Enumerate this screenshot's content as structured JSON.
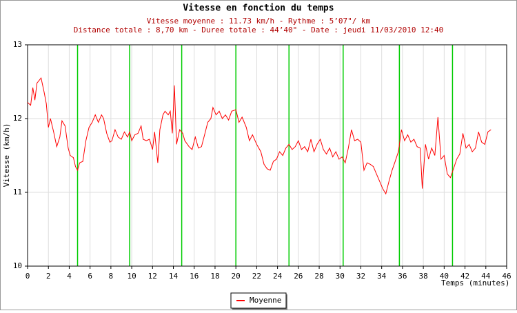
{
  "chart_data": {
    "type": "line",
    "title": "Vitesse en fonction du temps",
    "subtitle": [
      "Vitesse moyenne : 11.73 km/h - Rythme : 5’07\"/ km",
      "Distance totale : 8,70 km - Duree totale : 44’40\" - Date : jeudi 11/03/2010 12:40"
    ],
    "x_label": "Temps (minutes)",
    "y_label": "Vitesse (km/h)",
    "x": [
      0,
      0.3,
      0.5,
      0.7,
      0.9,
      1.3,
      1.6,
      1.8,
      2.0,
      2.2,
      2.5,
      2.8,
      3.1,
      3.3,
      3.6,
      3.9,
      4.1,
      4.4,
      4.6,
      4.8,
      5.0,
      5.3,
      5.6,
      5.9,
      6.2,
      6.5,
      6.8,
      7.1,
      7.3,
      7.6,
      7.9,
      8.1,
      8.4,
      8.7,
      9.0,
      9.3,
      9.6,
      9.8,
      10.0,
      10.3,
      10.6,
      10.9,
      11.1,
      11.4,
      11.7,
      12.0,
      12.2,
      12.5,
      12.7,
      13.0,
      13.2,
      13.5,
      13.7,
      13.9,
      14.1,
      14.3,
      14.6,
      14.9,
      15.1,
      15.5,
      15.8,
      16.1,
      16.4,
      16.7,
      17.0,
      17.3,
      17.6,
      17.8,
      18.1,
      18.4,
      18.7,
      19.0,
      19.3,
      19.6,
      20.0,
      20.3,
      20.6,
      21.0,
      21.3,
      21.6,
      22.0,
      22.4,
      22.7,
      23.0,
      23.3,
      23.6,
      23.9,
      24.2,
      24.5,
      24.8,
      25.1,
      25.4,
      25.7,
      26.0,
      26.3,
      26.6,
      26.9,
      27.2,
      27.5,
      27.8,
      28.1,
      28.4,
      28.7,
      29.0,
      29.3,
      29.6,
      29.9,
      30.2,
      30.5,
      30.8,
      31.1,
      31.4,
      31.7,
      32.0,
      32.3,
      32.6,
      32.9,
      33.2,
      33.5,
      33.8,
      34.1,
      34.4,
      34.7,
      35.0,
      35.3,
      35.6,
      35.9,
      36.2,
      36.5,
      36.8,
      37.1,
      37.4,
      37.7,
      37.9,
      38.2,
      38.5,
      38.8,
      39.1,
      39.4,
      39.7,
      40.0,
      40.3,
      40.6,
      40.9,
      41.2,
      41.5,
      41.8,
      42.1,
      42.4,
      42.7,
      43.0,
      43.3,
      43.6,
      43.9,
      44.2,
      44.5
    ],
    "series": [
      {
        "name": "Moyenne",
        "color": "#ff0000",
        "values": [
          12.22,
          12.18,
          12.42,
          12.25,
          12.48,
          12.55,
          12.35,
          12.2,
          11.88,
          12.0,
          11.82,
          11.62,
          11.75,
          11.97,
          11.9,
          11.6,
          11.5,
          11.47,
          11.35,
          11.3,
          11.4,
          11.42,
          11.7,
          11.88,
          11.95,
          12.05,
          11.95,
          12.05,
          12.0,
          11.8,
          11.68,
          11.7,
          11.85,
          11.75,
          11.72,
          11.82,
          11.75,
          11.82,
          11.7,
          11.78,
          11.8,
          11.9,
          11.72,
          11.7,
          11.72,
          11.58,
          11.82,
          11.4,
          11.85,
          12.05,
          12.1,
          12.05,
          12.1,
          11.8,
          12.45,
          11.65,
          11.85,
          11.8,
          11.7,
          11.62,
          11.58,
          11.75,
          11.6,
          11.62,
          11.78,
          11.95,
          12.0,
          12.15,
          12.05,
          12.1,
          12.0,
          12.05,
          11.98,
          12.1,
          12.12,
          11.95,
          12.02,
          11.88,
          11.7,
          11.78,
          11.65,
          11.55,
          11.38,
          11.32,
          11.3,
          11.42,
          11.45,
          11.55,
          11.5,
          11.6,
          11.65,
          11.58,
          11.62,
          11.7,
          11.58,
          11.62,
          11.55,
          11.72,
          11.55,
          11.65,
          11.72,
          11.58,
          11.52,
          11.6,
          11.48,
          11.55,
          11.45,
          11.48,
          11.4,
          11.6,
          11.85,
          11.7,
          11.72,
          11.68,
          11.3,
          11.4,
          11.38,
          11.35,
          11.25,
          11.15,
          11.05,
          10.98,
          11.15,
          11.3,
          11.42,
          11.55,
          11.85,
          11.7,
          11.78,
          11.68,
          11.72,
          11.62,
          11.6,
          11.05,
          11.65,
          11.45,
          11.6,
          11.5,
          12.02,
          11.45,
          11.5,
          11.25,
          11.2,
          11.32,
          11.45,
          11.52,
          11.8,
          11.6,
          11.65,
          11.55,
          11.6,
          11.82,
          11.68,
          11.65,
          11.82,
          11.85
        ]
      }
    ],
    "markers": {
      "color": "#00cc00",
      "x": [
        4.8,
        9.8,
        14.8,
        20.0,
        25.1,
        30.3,
        35.7,
        40.8
      ]
    },
    "xlim": [
      0,
      46
    ],
    "xticks": [
      0,
      2,
      4,
      6,
      8,
      10,
      12,
      14,
      16,
      18,
      20,
      22,
      24,
      26,
      28,
      30,
      32,
      34,
      36,
      38,
      40,
      42,
      44,
      46
    ],
    "ylim": [
      10,
      13
    ],
    "yticks": [
      10,
      11,
      12,
      13
    ],
    "grid": true,
    "legend": "bottom"
  }
}
